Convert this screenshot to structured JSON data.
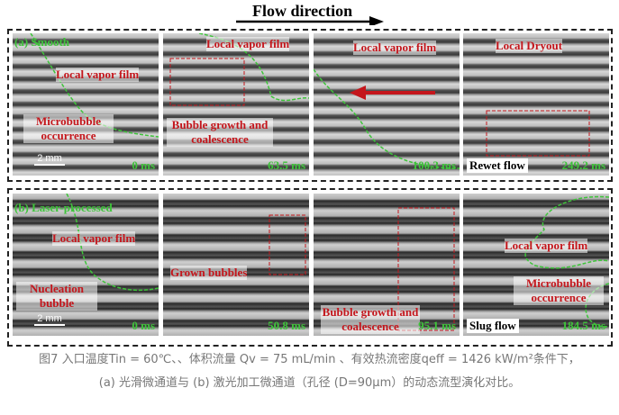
{
  "header": {
    "title": "Flow direction"
  },
  "rows": [
    {
      "label": "(a) Smooth",
      "panels": [
        {
          "labels": [
            "Local vapor film",
            "Microbubble occurrence"
          ],
          "scale": "2 mm",
          "time": "0 ms"
        },
        {
          "labels": [
            "Local vapor film",
            "Bubble growth and coalescence"
          ],
          "time": "63.5 ms"
        },
        {
          "labels": [
            "Local vapor film"
          ],
          "time": "100.3 ms"
        },
        {
          "labels": [
            "Local Dryout"
          ],
          "note": "Rewet flow",
          "time": "249.2 ms"
        }
      ]
    },
    {
      "label": "(b) Laser-processed",
      "panels": [
        {
          "labels": [
            "Local vapor film",
            "Nucleation bubble"
          ],
          "scale": "2 mm",
          "time": "0 ms"
        },
        {
          "labels": [
            "Grown bubbles"
          ],
          "time": "50.8 ms"
        },
        {
          "labels": [
            "Bubble growth and coalescence"
          ],
          "time": "95.1 ms"
        },
        {
          "labels": [
            "Local vapor film",
            "Microbubble occurrence"
          ],
          "note": "Slug flow",
          "time": "184.5 ms"
        }
      ]
    }
  ],
  "caption": {
    "lines": [
      "图7 入口温度Tin = 60℃、、体积流量 Qv = 75 mL/min 、有效热流密度qeff = 1426 kW/m²条件下，",
      "(a) 光滑微通道与 (b) 激光加工微通道（孔径 (D=90μm）的动态流型演化对比。"
    ]
  }
}
